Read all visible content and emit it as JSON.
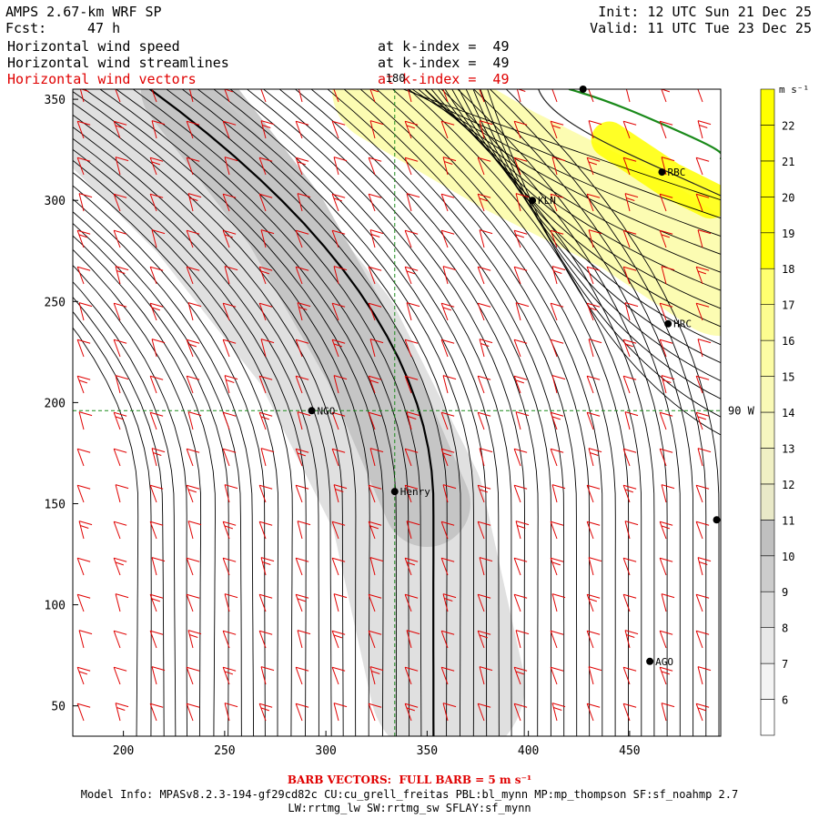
{
  "header": {
    "model": "AMPS 2.67-km WRF SP",
    "fcst_label": "Fcst:",
    "fcst_value": "47 h",
    "init": "Init: 12 UTC Sun 21 Dec 25",
    "valid": "Valid: 11 UTC Tue 23 Dec 25",
    "fields": [
      {
        "name": "Horizontal wind speed",
        "level": "at k-index =  49",
        "color": "#000000"
      },
      {
        "name": "Horizontal wind streamlines",
        "level": "at k-index =  49",
        "color": "#000000"
      },
      {
        "name": "Horizontal wind vectors",
        "level": "at k-index =  49",
        "color": "#e00000"
      }
    ]
  },
  "chart_data": {
    "type": "heatmap",
    "title": "Horizontal wind speed",
    "xlim": [
      175,
      495
    ],
    "ylim": [
      35,
      355
    ],
    "xticks": [
      200,
      250,
      300,
      350,
      400,
      450
    ],
    "yticks": [
      50,
      100,
      150,
      200,
      250,
      300,
      350
    ],
    "grid_lines": [
      {
        "label": "180",
        "axis": "x",
        "value": 334
      },
      {
        "label": "90 W",
        "axis": "y",
        "value": 196
      }
    ],
    "stations": [
      {
        "name": "NGO",
        "x": 293,
        "y": 196
      },
      {
        "name": "Henry",
        "x": 334,
        "y": 156
      },
      {
        "name": "KLN",
        "x": 402,
        "y": 300
      },
      {
        "name": "RBC",
        "x": 466,
        "y": 314
      },
      {
        "name": "HRC",
        "x": 469,
        "y": 239
      },
      {
        "name": "AGO",
        "x": 460,
        "y": 72
      },
      {
        "name": "",
        "x": 427,
        "y": 355
      },
      {
        "name": "",
        "x": 493,
        "y": 142
      }
    ],
    "colorbar": {
      "unit": "m s⁻¹",
      "levels": [
        6,
        7,
        8,
        9,
        10,
        11,
        12,
        13,
        14,
        15,
        16,
        17,
        18,
        19,
        20,
        21,
        22
      ],
      "colors": [
        "#ffffff",
        "#f4f4f4",
        "#e8e8e8",
        "#dadada",
        "#cccccc",
        "#c0c0c0",
        "#e9e9c8",
        "#f0f0c4",
        "#f6f6c0",
        "#fafab6",
        "#fcfca4",
        "#fdfd90",
        "#ffff70",
        "#ffff00",
        "#ffff00",
        "#ffff00",
        "#ffff00"
      ]
    },
    "speed_field": {
      "description_levels": "m s-1",
      "bands": [
        {
          "value": 9,
          "path_x": [
            190,
            245,
            300,
            340,
            360
          ],
          "path_y": [
            355,
            300,
            230,
            150,
            60
          ]
        },
        {
          "value": 11,
          "path_x": [
            230,
            280,
            320,
            350
          ],
          "path_y": [
            355,
            290,
            220,
            150
          ]
        },
        {
          "value": 16,
          "path_x": [
            330,
            390,
            450,
            495
          ],
          "path_y": [
            355,
            320,
            290,
            260
          ]
        },
        {
          "value": 22,
          "path_x": [
            440,
            470,
            490
          ],
          "path_y": [
            330,
            310,
            300
          ]
        }
      ]
    }
  },
  "footer": {
    "barb_label": "BARB VECTORS:  FULL BARB = 5 m s⁻¹",
    "model_info": "Model Info: MPASv8.2.3-194-gf29cd82c CU:cu_grell_freitas PBL:bl_mynn MP:mp_thompson SF:sf_noahmp 2.7",
    "model_info2": "LW:rrtmg_lw SW:rrtmg_sw SFLAY:sf_mynn"
  }
}
